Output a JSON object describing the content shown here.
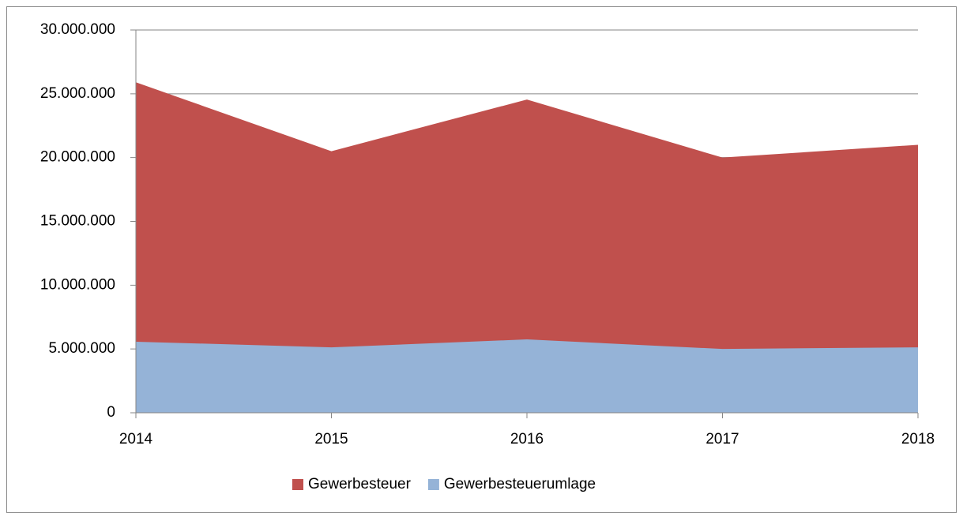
{
  "chart_data": {
    "type": "area",
    "categories": [
      "2014",
      "2015",
      "2016",
      "2017",
      "2018"
    ],
    "series": [
      {
        "name": "Gewerbesteuer",
        "color": "#c0504d",
        "values": [
          25900000,
          20500000,
          24550000,
          20000000,
          21000000
        ]
      },
      {
        "name": "Gewerbesteuerumlage",
        "color": "#95b3d7",
        "values": [
          5570000,
          5130000,
          5750000,
          5000000,
          5130000
        ]
      }
    ],
    "ylim": [
      0,
      30000000
    ],
    "yticks": [
      {
        "value": 0,
        "label": "0"
      },
      {
        "value": 5000000,
        "label": "5.000.000"
      },
      {
        "value": 10000000,
        "label": "10.000.000"
      },
      {
        "value": 15000000,
        "label": "15.000.000"
      },
      {
        "value": 20000000,
        "label": "20.000.000"
      },
      {
        "value": 25000000,
        "label": "25.000.000"
      },
      {
        "value": 30000000,
        "label": "30.000.000"
      }
    ],
    "grid": true,
    "legend": "bottom"
  }
}
